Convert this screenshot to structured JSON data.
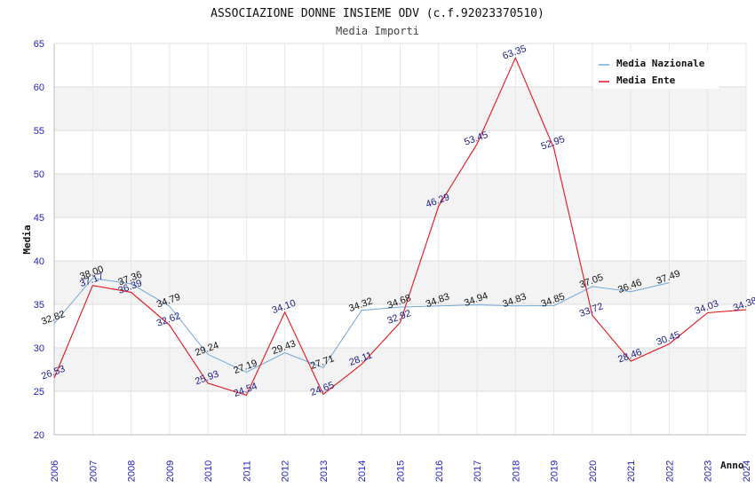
{
  "chart_data": {
    "type": "line",
    "title": "ASSOCIAZIONE DONNE INSIEME ODV (c.f.92023370510)",
    "subtitle": "Media Importi",
    "xlabel": "Anno",
    "ylabel": "Media",
    "ylim": [
      20,
      65
    ],
    "yticks": [
      "20",
      "25",
      "30",
      "35",
      "40",
      "45",
      "50",
      "55",
      "60",
      "65"
    ],
    "x": [
      "2006",
      "2007",
      "2008",
      "2009",
      "2010",
      "2011",
      "2012",
      "2013",
      "2014",
      "2015",
      "2016",
      "2017",
      "2018",
      "2019",
      "2020",
      "2021",
      "2022",
      "2023",
      "2024"
    ],
    "grid": true,
    "legend_position": "top-right",
    "series": [
      {
        "name": "Media Nazionale",
        "color": "#6fa8dc",
        "values": [
          32.82,
          38.0,
          37.36,
          34.79,
          29.24,
          27.19,
          29.43,
          27.71,
          34.32,
          34.68,
          34.83,
          34.94,
          34.83,
          34.85,
          37.05,
          36.46,
          37.49,
          null,
          null
        ],
        "labels": [
          "32.82",
          "38.00",
          "37.36",
          "34.79",
          "29.24",
          "27.19",
          "29.43",
          "27.71",
          "34.32",
          "34.68",
          "34.83",
          "34.94",
          "34.83",
          "34.85",
          "37.05",
          "36.46",
          "37.49",
          null,
          null
        ]
      },
      {
        "name": "Media Ente",
        "color": "#e8121a",
        "values": [
          26.53,
          37.17,
          36.39,
          32.62,
          25.93,
          24.54,
          34.1,
          24.65,
          28.11,
          32.92,
          46.29,
          53.45,
          63.35,
          52.95,
          33.72,
          28.46,
          30.45,
          34.03,
          34.38
        ],
        "labels": [
          "26.53",
          "37.17",
          "36.39",
          "32.62",
          "25.93",
          "24.54",
          "34.10",
          "24.65",
          "28.11",
          "32.92",
          "46.29",
          "53.45",
          "63.35",
          "52.95",
          "33.72",
          "28.46",
          "30.45",
          "34.03",
          "34.38"
        ]
      }
    ]
  }
}
